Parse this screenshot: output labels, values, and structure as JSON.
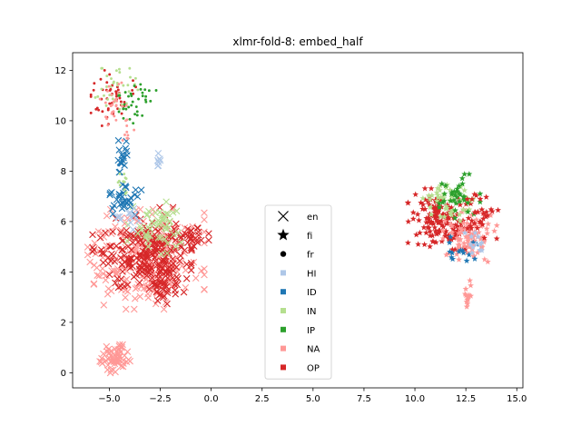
{
  "chart_data": {
    "type": "scatter",
    "title": "xlmr-fold-8: embed_half",
    "xlabel": "",
    "ylabel": "",
    "xlim": [
      -6.8,
      15.3
    ],
    "ylim": [
      -0.6,
      12.7
    ],
    "x_ticks": [
      -5.0,
      -2.5,
      0.0,
      2.5,
      5.0,
      7.5,
      10.0,
      12.5,
      15.0
    ],
    "x_tick_labels": [
      "−5.0",
      "−2.5",
      "0.0",
      "2.5",
      "5.0",
      "7.5",
      "10.0",
      "12.5",
      "15.0"
    ],
    "y_ticks": [
      0,
      2,
      4,
      6,
      8,
      10,
      12
    ],
    "y_tick_labels": [
      "0",
      "2",
      "4",
      "6",
      "8",
      "10",
      "12"
    ],
    "grid": false,
    "legend_position": "center-bottom",
    "legend": [
      {
        "label": "en",
        "marker": "x",
        "color": "#000000"
      },
      {
        "label": "fi",
        "marker": "star",
        "color": "#000000"
      },
      {
        "label": "fr",
        "marker": "circle",
        "color": "#000000"
      },
      {
        "label": "HI",
        "marker": "square",
        "color": "#aec7e8"
      },
      {
        "label": "ID",
        "marker": "square",
        "color": "#1f77b4"
      },
      {
        "label": "IN",
        "marker": "square",
        "color": "#b5df8f"
      },
      {
        "label": "IP",
        "marker": "square",
        "color": "#2ca02c"
      },
      {
        "label": "NA",
        "marker": "square",
        "color": "#ff9896"
      },
      {
        "label": "OP",
        "marker": "square",
        "color": "#d62728"
      }
    ],
    "clusters": [
      {
        "class": "NA",
        "cx": -3.2,
        "cy": 4.5,
        "sx": 1.3,
        "sy": 0.9,
        "n": 240,
        "marker": "x"
      },
      {
        "class": "OP",
        "cx": -3.4,
        "cy": 4.8,
        "sx": 1.1,
        "sy": 0.8,
        "n": 180,
        "marker": "x"
      },
      {
        "class": "OP",
        "cx": -2.3,
        "cy": 4.0,
        "sx": 0.5,
        "sy": 0.6,
        "n": 70,
        "marker": "x"
      },
      {
        "class": "OP",
        "cx": -1.0,
        "cy": 5.3,
        "sx": 0.4,
        "sy": 0.2,
        "n": 30,
        "marker": "x"
      },
      {
        "class": "IN",
        "cx": -2.8,
        "cy": 5.8,
        "sx": 0.6,
        "sy": 0.5,
        "n": 50,
        "marker": "x"
      },
      {
        "class": "ID",
        "cx": -4.2,
        "cy": 6.9,
        "sx": 0.35,
        "sy": 0.35,
        "n": 35,
        "marker": "x"
      },
      {
        "class": "ID",
        "cx": -4.3,
        "cy": 8.6,
        "sx": 0.12,
        "sy": 0.35,
        "n": 18,
        "marker": "x"
      },
      {
        "class": "HI",
        "cx": -2.6,
        "cy": 8.4,
        "sx": 0.1,
        "sy": 0.15,
        "n": 8,
        "marker": "x"
      },
      {
        "class": "HI",
        "cx": -4.0,
        "cy": 6.2,
        "sx": 0.3,
        "sy": 0.3,
        "n": 12,
        "marker": "x"
      },
      {
        "class": "IN",
        "cx": -4.3,
        "cy": 7.5,
        "sx": 0.2,
        "sy": 0.3,
        "n": 12,
        "marker": "circle"
      },
      {
        "class": "NA",
        "cx": -4.7,
        "cy": 0.6,
        "sx": 0.35,
        "sy": 0.3,
        "n": 60,
        "marker": "x"
      },
      {
        "class": "OP",
        "cx": -4.8,
        "cy": 10.9,
        "sx": 0.5,
        "sy": 0.5,
        "n": 50,
        "marker": "circle"
      },
      {
        "class": "IN",
        "cx": -4.7,
        "cy": 11.2,
        "sx": 0.5,
        "sy": 0.4,
        "n": 35,
        "marker": "circle"
      },
      {
        "class": "IP",
        "cx": -3.8,
        "cy": 10.7,
        "sx": 0.5,
        "sy": 0.4,
        "n": 35,
        "marker": "circle"
      },
      {
        "class": "NA",
        "cx": -4.9,
        "cy": 10.6,
        "sx": 0.4,
        "sy": 0.5,
        "n": 25,
        "marker": "circle"
      },
      {
        "class": "NA",
        "cx": -4.2,
        "cy": 9.6,
        "sx": 0.2,
        "sy": 0.25,
        "n": 10,
        "marker": "circle"
      },
      {
        "class": "OP",
        "cx": 11.2,
        "cy": 6.1,
        "sx": 0.7,
        "sy": 0.55,
        "n": 150,
        "marker": "star"
      },
      {
        "class": "NA",
        "cx": 12.7,
        "cy": 5.5,
        "sx": 0.6,
        "sy": 0.5,
        "n": 90,
        "marker": "star"
      },
      {
        "class": "IN",
        "cx": 11.7,
        "cy": 6.9,
        "sx": 0.6,
        "sy": 0.4,
        "n": 50,
        "marker": "star"
      },
      {
        "class": "IP",
        "cx": 12.1,
        "cy": 7.0,
        "sx": 0.5,
        "sy": 0.4,
        "n": 35,
        "marker": "star"
      },
      {
        "class": "ID",
        "cx": 12.2,
        "cy": 5.0,
        "sx": 0.4,
        "sy": 0.3,
        "n": 15,
        "marker": "star"
      },
      {
        "class": "HI",
        "cx": 12.9,
        "cy": 5.2,
        "sx": 0.3,
        "sy": 0.3,
        "n": 12,
        "marker": "star"
      },
      {
        "class": "OP",
        "cx": 13.2,
        "cy": 6.2,
        "sx": 0.4,
        "sy": 0.4,
        "n": 30,
        "marker": "star"
      },
      {
        "class": "NA",
        "cx": 12.6,
        "cy": 3.0,
        "sx": 0.08,
        "sy": 0.3,
        "n": 14,
        "marker": "star"
      }
    ]
  }
}
